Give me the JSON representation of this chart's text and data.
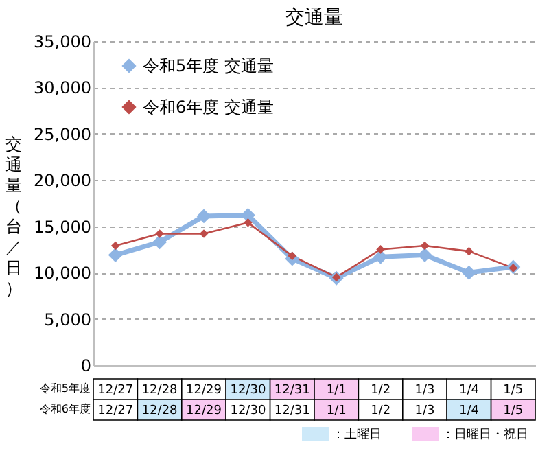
{
  "chart_data": {
    "type": "line",
    "title": "交通量",
    "ylabel": "交通量（台／日）",
    "categories": [
      "12/27",
      "12/28",
      "12/29",
      "12/30",
      "12/31",
      "1/1",
      "1/2",
      "1/3",
      "1/4",
      "1/5"
    ],
    "series": [
      {
        "name": "令和5年度 交通量",
        "color": "#8eb4e3",
        "values": [
          11900,
          13300,
          16100,
          16200,
          11500,
          9400,
          11700,
          11900,
          10000,
          10600
        ]
      },
      {
        "name": "令和6年度 交通量",
        "color": "#be4b48",
        "values": [
          12900,
          14200,
          14200,
          15400,
          11800,
          9500,
          12500,
          12900,
          12300,
          10500
        ]
      }
    ],
    "ylim": [
      0,
      35000
    ],
    "yticks": [
      0,
      {
        "value": 5000,
        "label": "5,000"
      },
      {
        "value": 10000,
        "label": "10,000"
      },
      {
        "value": 15000,
        "label": "15,000"
      },
      {
        "value": 20000,
        "label": "20,000"
      },
      {
        "value": 25000,
        "label": "25,000"
      },
      {
        "value": 30000,
        "label": "30,000"
      },
      {
        "value": 35000,
        "label": "35,000"
      }
    ],
    "grid": "y",
    "legend": "top left",
    "marker": "diamond",
    "line_style": "solid",
    "annotations": [
      "令和5年度",
      "令和6年度",
      "：土曜日",
      "：日曜日・祝日"
    ]
  }
}
